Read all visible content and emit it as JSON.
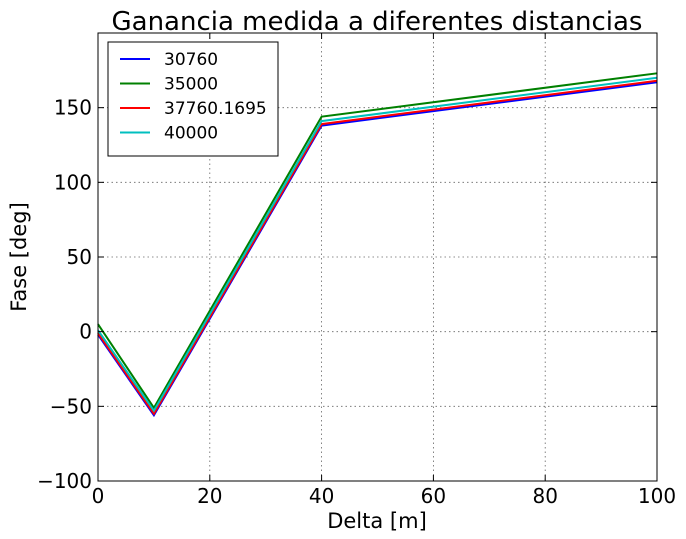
{
  "chart_data": {
    "type": "line",
    "title": "Ganancia medida a diferentes distancias",
    "xlabel": "Delta [m]",
    "ylabel": "Fase [deg]",
    "xlim": [
      0,
      100
    ],
    "ylim": [
      -100,
      200
    ],
    "xticks": [
      0,
      20,
      40,
      60,
      80,
      100
    ],
    "yticks": [
      -100,
      -50,
      0,
      50,
      100,
      150
    ],
    "xtick_labels": [
      "0",
      "20",
      "40",
      "60",
      "80",
      "100"
    ],
    "ytick_labels": [
      "−100",
      "−50",
      "0",
      "50",
      "100",
      "150"
    ],
    "grid": true,
    "legend_position": "top-left",
    "x": [
      0,
      10,
      40,
      100
    ],
    "series": [
      {
        "name": "30760",
        "color": "#0000ff",
        "values": [
          -2,
          -56,
          138,
          167
        ]
      },
      {
        "name": "35000",
        "color": "#008000",
        "values": [
          5,
          -51,
          144,
          173
        ]
      },
      {
        "name": "37760.1695",
        "color": "#ff0000",
        "values": [
          -1,
          -55,
          139,
          168
        ]
      },
      {
        "name": "40000",
        "color": "#00bfbf",
        "values": [
          1,
          -53,
          141,
          170
        ]
      }
    ]
  }
}
